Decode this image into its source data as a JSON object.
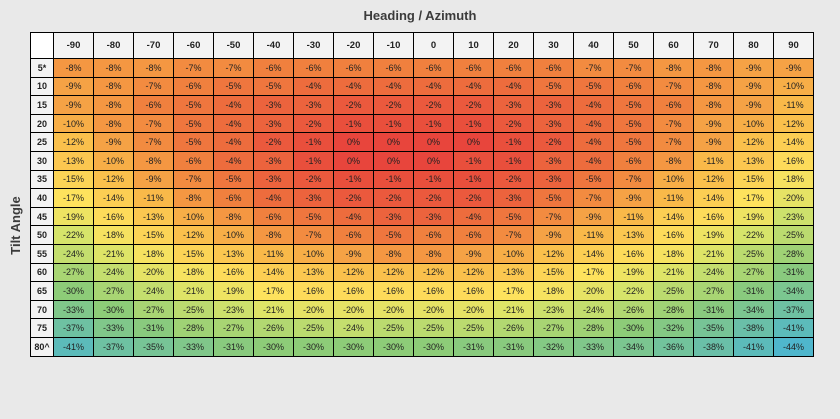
{
  "chart_data": {
    "type": "heatmap",
    "title": "Heading / Azimuth",
    "ylabel": "Tilt Angle",
    "x": [
      "-90",
      "-80",
      "-70",
      "-60",
      "-50",
      "-40",
      "-30",
      "-20",
      "-10",
      "0",
      "10",
      "20",
      "30",
      "40",
      "50",
      "60",
      "70",
      "80",
      "90"
    ],
    "y": [
      "5*",
      "10",
      "15",
      "20",
      "25",
      "30",
      "35",
      "40",
      "45",
      "50",
      "55",
      "60",
      "65",
      "70",
      "75",
      "80^"
    ],
    "values": [
      [
        "-8%",
        "-8%",
        "-8%",
        "-7%",
        "-7%",
        "-6%",
        "-6%",
        "-6%",
        "-6%",
        "-6%",
        "-6%",
        "-6%",
        "-6%",
        "-7%",
        "-7%",
        "-8%",
        "-8%",
        "-9%",
        "-9%"
      ],
      [
        "-9%",
        "-8%",
        "-7%",
        "-6%",
        "-5%",
        "-5%",
        "-4%",
        "-4%",
        "-4%",
        "-4%",
        "-4%",
        "-4%",
        "-5%",
        "-5%",
        "-6%",
        "-7%",
        "-8%",
        "-9%",
        "-10%"
      ],
      [
        "-9%",
        "-8%",
        "-6%",
        "-5%",
        "-4%",
        "-3%",
        "-3%",
        "-2%",
        "-2%",
        "-2%",
        "-2%",
        "-3%",
        "-3%",
        "-4%",
        "-5%",
        "-6%",
        "-8%",
        "-9%",
        "-11%"
      ],
      [
        "-10%",
        "-8%",
        "-7%",
        "-5%",
        "-4%",
        "-3%",
        "-2%",
        "-1%",
        "-1%",
        "-1%",
        "-1%",
        "-2%",
        "-3%",
        "-4%",
        "-5%",
        "-7%",
        "-9%",
        "-10%",
        "-12%"
      ],
      [
        "-12%",
        "-9%",
        "-7%",
        "-5%",
        "-4%",
        "-2%",
        "-1%",
        "0%",
        "0%",
        "0%",
        "0%",
        "-1%",
        "-2%",
        "-4%",
        "-5%",
        "-7%",
        "-9%",
        "-12%",
        "-14%"
      ],
      [
        "-13%",
        "-10%",
        "-8%",
        "-6%",
        "-4%",
        "-3%",
        "-1%",
        "0%",
        "0%",
        "0%",
        "-1%",
        "-1%",
        "-3%",
        "-4%",
        "-6%",
        "-8%",
        "-11%",
        "-13%",
        "-16%"
      ],
      [
        "-15%",
        "-12%",
        "-9%",
        "-7%",
        "-5%",
        "-3%",
        "-2%",
        "-1%",
        "-1%",
        "-1%",
        "-1%",
        "-2%",
        "-3%",
        "-5%",
        "-7%",
        "-10%",
        "-12%",
        "-15%",
        "-18%"
      ],
      [
        "-17%",
        "-14%",
        "-11%",
        "-8%",
        "-6%",
        "-4%",
        "-3%",
        "-2%",
        "-2%",
        "-2%",
        "-2%",
        "-3%",
        "-5%",
        "-7%",
        "-9%",
        "-11%",
        "-14%",
        "-17%",
        "-20%"
      ],
      [
        "-19%",
        "-16%",
        "-13%",
        "-10%",
        "-8%",
        "-6%",
        "-5%",
        "-4%",
        "-3%",
        "-3%",
        "-4%",
        "-5%",
        "-7%",
        "-9%",
        "-11%",
        "-14%",
        "-16%",
        "-19%",
        "-23%"
      ],
      [
        "-22%",
        "-18%",
        "-15%",
        "-12%",
        "-10%",
        "-8%",
        "-7%",
        "-6%",
        "-5%",
        "-6%",
        "-6%",
        "-7%",
        "-9%",
        "-11%",
        "-13%",
        "-16%",
        "-19%",
        "-22%",
        "-25%"
      ],
      [
        "-24%",
        "-21%",
        "-18%",
        "-15%",
        "-13%",
        "-11%",
        "-10%",
        "-9%",
        "-8%",
        "-8%",
        "-9%",
        "-10%",
        "-12%",
        "-14%",
        "-16%",
        "-18%",
        "-21%",
        "-25%",
        "-28%"
      ],
      [
        "-27%",
        "-24%",
        "-20%",
        "-18%",
        "-16%",
        "-14%",
        "-13%",
        "-12%",
        "-12%",
        "-12%",
        "-12%",
        "-13%",
        "-15%",
        "-17%",
        "-19%",
        "-21%",
        "-24%",
        "-27%",
        "-31%"
      ],
      [
        "-30%",
        "-27%",
        "-24%",
        "-21%",
        "-19%",
        "-17%",
        "-16%",
        "-16%",
        "-16%",
        "-16%",
        "-16%",
        "-17%",
        "-18%",
        "-20%",
        "-22%",
        "-25%",
        "-27%",
        "-31%",
        "-34%"
      ],
      [
        "-33%",
        "-30%",
        "-27%",
        "-25%",
        "-23%",
        "-21%",
        "-20%",
        "-20%",
        "-20%",
        "-20%",
        "-20%",
        "-21%",
        "-23%",
        "-24%",
        "-26%",
        "-28%",
        "-31%",
        "-34%",
        "-37%"
      ],
      [
        "-37%",
        "-33%",
        "-31%",
        "-28%",
        "-27%",
        "-26%",
        "-25%",
        "-24%",
        "-25%",
        "-25%",
        "-25%",
        "-26%",
        "-27%",
        "-28%",
        "-30%",
        "-32%",
        "-35%",
        "-38%",
        "-41%"
      ],
      [
        "-41%",
        "-37%",
        "-35%",
        "-33%",
        "-31%",
        "-30%",
        "-30%",
        "-30%",
        "-30%",
        "-30%",
        "-31%",
        "-31%",
        "-32%",
        "-33%",
        "-34%",
        "-36%",
        "-38%",
        "-41%",
        "-44%"
      ]
    ],
    "color_scale": {
      "stops": [
        {
          "value": 0,
          "color": "#e8453c"
        },
        {
          "value": -6,
          "color": "#f0803e"
        },
        {
          "value": -11,
          "color": "#f9b949"
        },
        {
          "value": -17,
          "color": "#fee25d"
        },
        {
          "value": -22,
          "color": "#d6e46a"
        },
        {
          "value": -30,
          "color": "#8dcc78"
        },
        {
          "value": -44,
          "color": "#4fb6cc"
        }
      ]
    },
    "grid": true
  }
}
